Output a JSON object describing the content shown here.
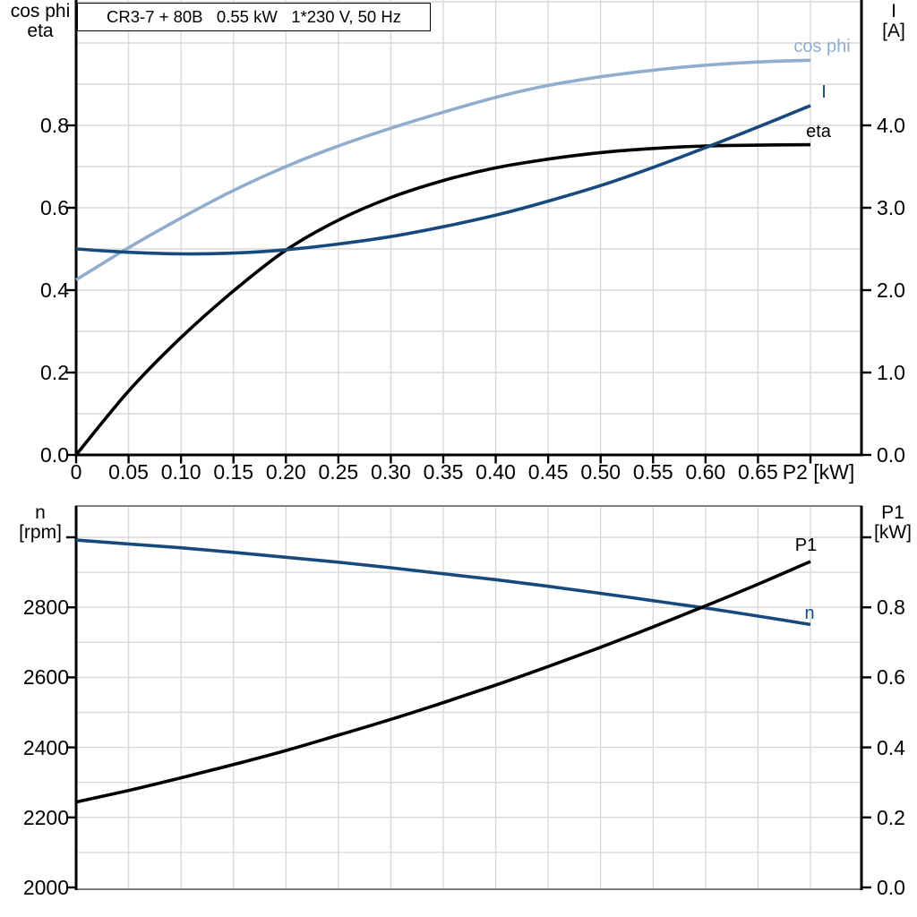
{
  "title_box": {
    "text": "CR3-7 + 80B   0.55 kW   1*230 V, 50 Hz"
  },
  "colors": {
    "black": "#000000",
    "dark_blue": "#17497c",
    "light_blue": "#90adcd",
    "grid": "#d9d9d9",
    "frame_gray": "#808080",
    "background": "#ffffff"
  },
  "chart_data": [
    {
      "type": "line",
      "title": "CR3-7 + 80B   0.55 kW   1*230 V, 50 Hz",
      "xlabel": "P2 [kW]",
      "x": [
        0,
        0.05,
        0.1,
        0.15,
        0.2,
        0.25,
        0.3,
        0.35,
        0.4,
        0.45,
        0.5,
        0.55,
        0.6,
        0.65,
        0.7
      ],
      "x_tick_labels": [
        "0",
        "0.05",
        "0.10",
        "0.15",
        "0.20",
        "0.25",
        "0.30",
        "0.35",
        "0.40",
        "0.45",
        "0.50",
        "0.55",
        "0.60",
        "0.65",
        "P2 [kW]"
      ],
      "left_axis": {
        "title_lines": [
          "cos phi",
          "eta"
        ],
        "ticks": [
          0,
          0.2,
          0.4,
          0.6,
          0.8
        ],
        "tick_labels": [
          "0.0",
          "0.2",
          "0.4",
          "0.6",
          "0.8"
        ],
        "range": [
          0,
          1.1
        ],
        "grid_step": 0.1
      },
      "right_axis": {
        "title_lines": [
          "I",
          "[A]"
        ],
        "ticks": [
          0,
          1.0,
          2.0,
          3.0,
          4.0
        ],
        "tick_labels": [
          "0.0",
          "1.0",
          "2.0",
          "3.0",
          "4.0"
        ],
        "range": [
          0,
          5.5
        ]
      },
      "grid": true,
      "legend": "inline-labels",
      "series": [
        {
          "name": "cos phi",
          "axis": "left",
          "color_key": "light_blue",
          "values": [
            0.425,
            0.503,
            0.575,
            0.642,
            0.7,
            0.75,
            0.793,
            0.832,
            0.868,
            0.897,
            0.918,
            0.934,
            0.946,
            0.954,
            0.958
          ]
        },
        {
          "name": "eta",
          "axis": "left",
          "color_key": "black",
          "values": [
            0,
            0.155,
            0.285,
            0.398,
            0.497,
            0.57,
            0.625,
            0.666,
            0.697,
            0.718,
            0.734,
            0.744,
            0.75,
            0.752,
            0.753
          ]
        },
        {
          "name": "I",
          "axis": "right",
          "color_key": "dark_blue",
          "values": [
            2.5,
            2.46,
            2.44,
            2.45,
            2.49,
            2.56,
            2.65,
            2.77,
            2.91,
            3.08,
            3.27,
            3.49,
            3.73,
            3.98,
            4.24
          ]
        }
      ]
    },
    {
      "type": "line",
      "title": "",
      "xlabel": "",
      "x": [
        0,
        0.05,
        0.1,
        0.15,
        0.2,
        0.25,
        0.3,
        0.35,
        0.4,
        0.45,
        0.5,
        0.55,
        0.6,
        0.65,
        0.7
      ],
      "x_tick_labels": [],
      "left_axis": {
        "title_lines": [
          "n",
          "[rpm]"
        ],
        "ticks": [
          2000,
          2200,
          2400,
          2600,
          2800,
          3000
        ],
        "tick_labels": [
          "2000",
          "2200",
          "2400",
          "2600",
          "2800",
          ""
        ],
        "range": [
          2000,
          3090
        ],
        "grid_step": 100
      },
      "right_axis": {
        "title_lines": [
          "P1",
          "[kW]"
        ],
        "ticks": [
          0,
          0.2,
          0.4,
          0.6,
          0.8,
          1.0
        ],
        "tick_labels": [
          "0.0",
          "0.2",
          "0.4",
          "0.6",
          "0.8",
          ""
        ],
        "range": [
          0,
          1.09
        ]
      },
      "grid": true,
      "legend": "inline-labels",
      "series": [
        {
          "name": "n",
          "axis": "left",
          "color_key": "dark_blue",
          "values": [
            2992,
            2981,
            2970,
            2957,
            2943,
            2929,
            2913,
            2896,
            2879,
            2860,
            2840,
            2819,
            2798,
            2775,
            2751
          ]
        },
        {
          "name": "P1",
          "axis": "right",
          "color_key": "black",
          "values": [
            0.244,
            0.277,
            0.313,
            0.351,
            0.391,
            0.435,
            0.48,
            0.528,
            0.578,
            0.631,
            0.686,
            0.744,
            0.804,
            0.866,
            0.931
          ]
        }
      ]
    }
  ]
}
